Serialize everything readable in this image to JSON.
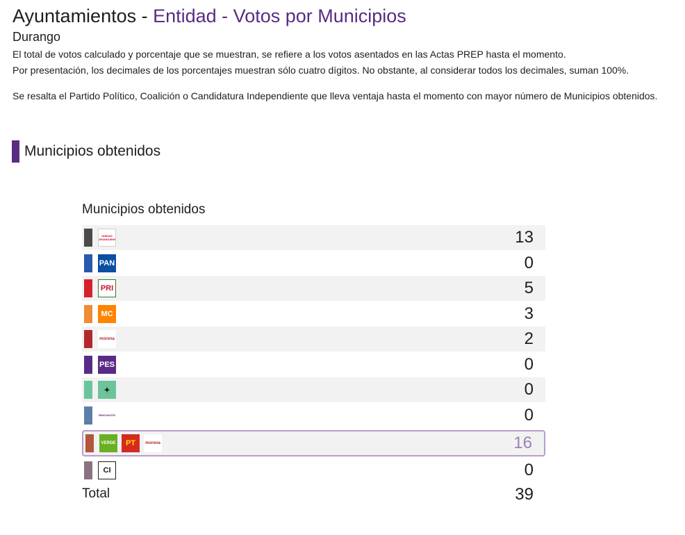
{
  "header": {
    "title_main": "Ayuntamientos - ",
    "title_accent": "Entidad - Votos por Municipios",
    "subtitle": "Durango"
  },
  "info": {
    "line1": "El total de votos calculado y porcentaje que se muestran, se refiere a los votos asentados en las Actas PREP hasta el momento.",
    "line2": "Por presentación, los decimales de los porcentajes muestran sólo cuatro dígitos. No obstante, al considerar todos los decimales, suman 100%.",
    "line3": "Se resalta el Partido Político, Coalición o Candidatura Independiente que lleva ventaja hasta el momento con mayor número de Municipios obtenidos."
  },
  "section_title": "Municipios obtenidos",
  "card_title": "Municipios obtenidos",
  "rows": [
    {
      "value": "13",
      "color": "#4a4a4a",
      "logos": [
        {
          "text": "UNIDAD DURANGUENSE",
          "icon": "unidad-logo-icon",
          "bg": "#ffffff",
          "fg": "#c8102e",
          "border": "#d0d0d0"
        }
      ]
    },
    {
      "value": "0",
      "color": "#2a58ad",
      "logos": [
        {
          "text": "PAN",
          "icon": "pan-logo-icon",
          "bg": "#0b4fa3",
          "fg": "#ffffff",
          "border": "#0b4fa3"
        }
      ]
    },
    {
      "value": "5",
      "color": "#d4222a",
      "logos": [
        {
          "text": "PRI",
          "icon": "pri-logo-icon",
          "bg": "#ffffff",
          "fg": "#c8102e",
          "border": "#2e7d32"
        }
      ]
    },
    {
      "value": "3",
      "color": "#f08c36",
      "logos": [
        {
          "text": "MC",
          "icon": "mc-logo-icon",
          "bg": "#ff8300",
          "fg": "#ffffff",
          "border": "#ff8300"
        }
      ]
    },
    {
      "value": "2",
      "color": "#b3282d",
      "logos": [
        {
          "text": "morena",
          "icon": "morena-logo-icon",
          "bg": "#ffffff",
          "fg": "#b3282d",
          "border": "#ffffff"
        }
      ]
    },
    {
      "value": "0",
      "color": "#5b2a86",
      "logos": [
        {
          "text": "PES",
          "icon": "pes-logo-icon",
          "bg": "#5b2a86",
          "fg": "#ffffff",
          "border": "#5b2a86"
        }
      ]
    },
    {
      "value": "0",
      "color": "#6cc49a",
      "logos": [
        {
          "text": "✦",
          "icon": "psi-logo-icon",
          "bg": "#6cc49a",
          "fg": "#1a1a1a",
          "border": "#6cc49a"
        }
      ]
    },
    {
      "value": "0",
      "color": "#5a7fa8",
      "logos": [
        {
          "text": "RENOVACIÓN",
          "icon": "renovacion-logo-icon",
          "bg": "#ffffff",
          "fg": "#5b2a86",
          "border": "#ffffff"
        }
      ]
    },
    {
      "value": "16",
      "color": "#b2563c",
      "highlight": true,
      "logos": [
        {
          "text": "VERDE",
          "icon": "verde-logo-icon",
          "bg": "#6ab023",
          "fg": "#ffffff",
          "border": "#6ab023"
        },
        {
          "text": "PT",
          "icon": "pt-logo-icon",
          "bg": "#d52b1e",
          "fg": "#ffde00",
          "border": "#d52b1e"
        },
        {
          "text": "morena",
          "icon": "morena-logo-icon",
          "bg": "#ffffff",
          "fg": "#b3282d",
          "border": "#ffffff"
        }
      ]
    },
    {
      "value": "0",
      "color": "#8a7280",
      "logos": [
        {
          "text": "CI",
          "icon": "ci-logo-icon",
          "bg": "#ffffff",
          "fg": "#1d1d1d",
          "border": "#1d1d1d"
        }
      ]
    }
  ],
  "total": {
    "label": "Total",
    "value": "39"
  }
}
